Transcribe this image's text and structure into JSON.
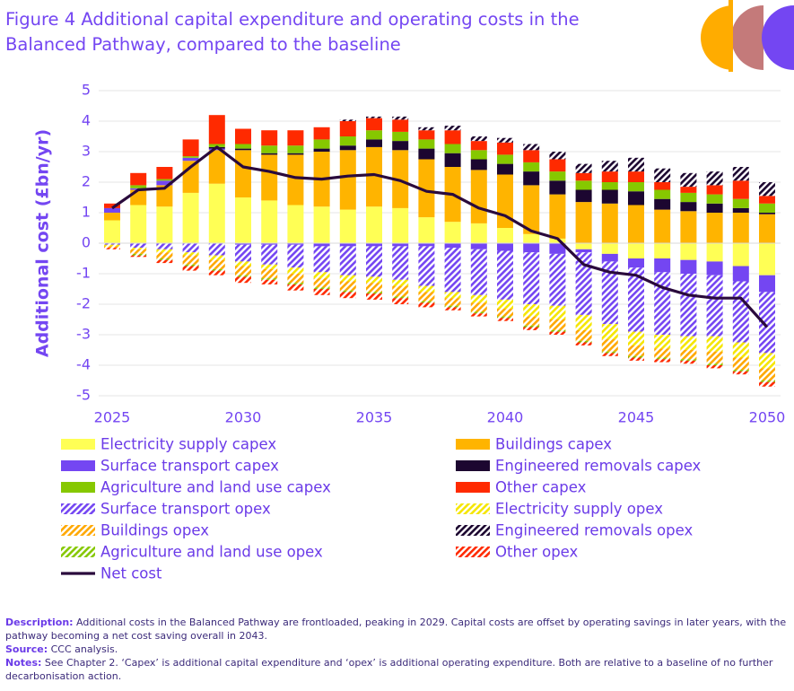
{
  "chart_data": {
    "type": "stacked_bar_line",
    "title": [
      "Figure 4 Additional capital expenditure and operating costs in the",
      "Balanced Pathway, compared to the baseline"
    ],
    "ylabel": "Additional cost (£bn/yr)",
    "x": [
      2025,
      2026,
      2027,
      2028,
      2029,
      2030,
      2031,
      2032,
      2033,
      2034,
      2035,
      2036,
      2037,
      2038,
      2039,
      2040,
      2041,
      2042,
      2043,
      2044,
      2045,
      2046,
      2047,
      2048,
      2049,
      2050
    ],
    "xlim": [
      2025,
      2050
    ],
    "xticks": [
      2025,
      2030,
      2035,
      2040,
      2045,
      2050
    ],
    "ylim": [
      -5,
      5
    ],
    "yticks": [
      5,
      4,
      3,
      2,
      1,
      0,
      -1,
      -2,
      -3,
      -4,
      -5
    ],
    "grid": true,
    "series": [
      {
        "name": "Electricity supply capex",
        "color": "#ffff55",
        "hatch": false,
        "values": [
          0.75,
          1.25,
          1.2,
          1.65,
          1.95,
          1.5,
          1.4,
          1.25,
          1.2,
          1.1,
          1.2,
          1.15,
          0.85,
          0.7,
          0.65,
          0.5,
          0.3,
          0.15,
          -0.2,
          -0.35,
          -0.5,
          -0.5,
          -0.55,
          -0.6,
          -0.75,
          -1.05
        ]
      },
      {
        "name": "Buildings capex",
        "color": "#ffb400",
        "hatch": false,
        "values": [
          0.25,
          0.5,
          0.7,
          1.05,
          1.1,
          1.55,
          1.5,
          1.65,
          1.8,
          1.95,
          1.95,
          1.9,
          1.9,
          1.8,
          1.75,
          1.75,
          1.6,
          1.45,
          1.35,
          1.3,
          1.25,
          1.1,
          1.05,
          1.0,
          1.0,
          0.95
        ]
      },
      {
        "name": "Surface transport capex",
        "color": "#7446f2",
        "hatch": false,
        "values": [
          0.15,
          0.05,
          0.15,
          0.1,
          0.05,
          -0.05,
          -0.05,
          -0.05,
          -0.1,
          -0.1,
          -0.1,
          -0.1,
          -0.1,
          -0.15,
          -0.2,
          -0.25,
          -0.3,
          -0.35,
          -0.1,
          -0.25,
          -0.3,
          -0.45,
          -0.45,
          -0.45,
          -0.5,
          -0.55
        ]
      },
      {
        "name": "Engineered removals capex",
        "color": "#1c0630",
        "hatch": false,
        "values": [
          0,
          0,
          0,
          0,
          0.05,
          0.05,
          0.05,
          0.05,
          0.1,
          0.15,
          0.25,
          0.3,
          0.35,
          0.45,
          0.35,
          0.35,
          0.45,
          0.45,
          0.4,
          0.45,
          0.45,
          0.35,
          0.3,
          0.3,
          0.15,
          0.05
        ]
      },
      {
        "name": "Agriculture and land use capex",
        "color": "#86c800",
        "hatch": false,
        "values": [
          0,
          0.1,
          0.05,
          0.05,
          0.1,
          0.15,
          0.25,
          0.25,
          0.3,
          0.3,
          0.3,
          0.3,
          0.3,
          0.3,
          0.3,
          0.3,
          0.3,
          0.3,
          0.3,
          0.25,
          0.3,
          0.3,
          0.3,
          0.3,
          0.3,
          0.3
        ]
      },
      {
        "name": "Other capex",
        "color": "#ff2a00",
        "hatch": false,
        "values": [
          0.15,
          0.4,
          0.4,
          0.55,
          0.95,
          0.5,
          0.5,
          0.5,
          0.4,
          0.5,
          0.4,
          0.4,
          0.3,
          0.45,
          0.3,
          0.4,
          0.4,
          0.4,
          0.25,
          0.35,
          0.35,
          0.25,
          0.2,
          0.3,
          0.6,
          0.25
        ]
      },
      {
        "name": "Surface transport opex",
        "color": "#7446f2",
        "hatch": true,
        "values": [
          -0.05,
          -0.15,
          -0.2,
          -0.3,
          -0.4,
          -0.55,
          -0.65,
          -0.75,
          -0.85,
          -0.95,
          -1.0,
          -1.1,
          -1.3,
          -1.45,
          -1.5,
          -1.6,
          -1.7,
          -1.7,
          -2.05,
          -2.05,
          -2.1,
          -2.05,
          -2.05,
          -2.0,
          -2.0,
          -2.0
        ]
      },
      {
        "name": "Electricity supply opex",
        "color": "#f5e600",
        "hatch": true,
        "values": [
          -0.05,
          -0.05,
          -0.1,
          -0.1,
          -0.15,
          -0.15,
          -0.15,
          -0.2,
          -0.2,
          -0.2,
          -0.2,
          -0.2,
          -0.2,
          -0.2,
          -0.25,
          -0.3,
          -0.4,
          -0.45,
          -0.5,
          -0.5,
          -0.45,
          -0.45,
          -0.45,
          -0.5,
          -0.5,
          -0.5
        ]
      },
      {
        "name": "Buildings opex",
        "color": "#ffa800",
        "hatch": true,
        "values": [
          -0.05,
          -0.15,
          -0.2,
          -0.3,
          -0.3,
          -0.3,
          -0.3,
          -0.3,
          -0.3,
          -0.3,
          -0.3,
          -0.35,
          -0.3,
          -0.25,
          -0.3,
          -0.25,
          -0.3,
          -0.35,
          -0.35,
          -0.4,
          -0.35,
          -0.3,
          -0.3,
          -0.4,
          -0.4,
          -0.4
        ]
      },
      {
        "name": "Engineered removals opex",
        "color": "#1c0630",
        "hatch": true,
        "values": [
          0,
          0,
          0,
          0,
          0,
          0,
          0,
          0,
          0,
          0.05,
          0.05,
          0.1,
          0.1,
          0.15,
          0.15,
          0.15,
          0.2,
          0.25,
          0.3,
          0.35,
          0.45,
          0.45,
          0.45,
          0.45,
          0.45,
          0.45
        ]
      },
      {
        "name": "Agriculture and land use opex",
        "color": "#86c800",
        "hatch": true,
        "values": [
          0,
          -0.05,
          -0.05,
          -0.05,
          -0.05,
          -0.05,
          -0.05,
          -0.05,
          -0.05,
          -0.05,
          -0.05,
          -0.05,
          -0.05,
          -0.05,
          -0.05,
          -0.05,
          -0.05,
          -0.05,
          -0.05,
          -0.05,
          -0.05,
          -0.05,
          -0.05,
          -0.05,
          -0.05,
          -0.05
        ]
      },
      {
        "name": "Other opex",
        "color": "#ff2a00",
        "hatch": true,
        "values": [
          -0.05,
          -0.05,
          -0.1,
          -0.15,
          -0.15,
          -0.2,
          -0.15,
          -0.2,
          -0.2,
          -0.2,
          -0.2,
          -0.2,
          -0.15,
          -0.1,
          -0.1,
          -0.1,
          -0.1,
          -0.1,
          -0.1,
          -0.1,
          -0.1,
          -0.1,
          -0.1,
          -0.1,
          -0.1,
          -0.15
        ]
      }
    ],
    "line": {
      "name": "Net cost",
      "color": "#2a0a3c",
      "values": [
        1.15,
        1.75,
        1.8,
        2.5,
        3.15,
        2.5,
        2.35,
        2.15,
        2.1,
        2.2,
        2.25,
        2.05,
        1.7,
        1.6,
        1.15,
        0.9,
        0.4,
        0.15,
        -0.7,
        -0.95,
        -1.05,
        -1.45,
        -1.7,
        -1.8,
        -1.8,
        -2.75
      ]
    }
  },
  "footer": [
    {
      "label": "Description:",
      "text": " Additional costs in the Balanced Pathway are frontloaded, peaking in 2029. Capital costs are offset by operating savings in later years, with the pathway becoming a net cost saving overall in 2043."
    },
    {
      "label": "Source:",
      "text": " CCC analysis."
    },
    {
      "label": "Notes:",
      "text": " See Chapter 2. ‘Capex’ is additional capital expenditure and ‘opex’ is additional operating expenditure. Both are relative to a baseline of no further decarbonisation action."
    }
  ]
}
